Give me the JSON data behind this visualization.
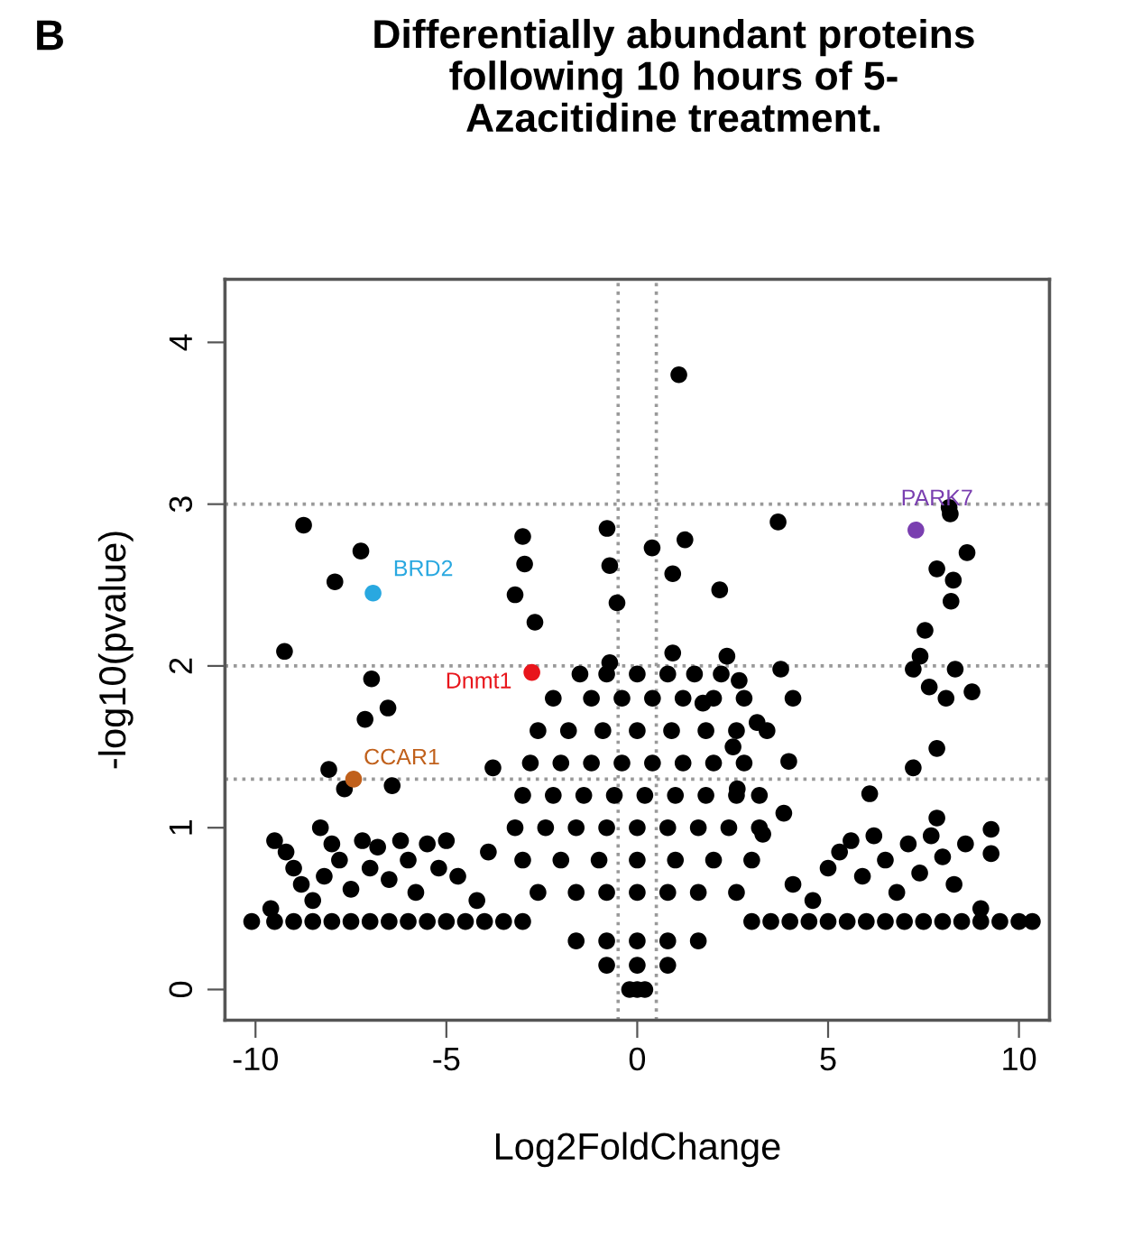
{
  "chart_data": {
    "type": "scatter",
    "title": "Differentially abundant proteins\nfollowing 10 hours of 5-\nAzacitidine treatment.",
    "xlabel": "Log2FoldChange",
    "ylabel": "-log10(pvalue)",
    "annotations": [
      "B"
    ],
    "xlim": [
      -10.8,
      10.8
    ],
    "ylim": [
      -0.19,
      4.39
    ],
    "xticks": [
      -10,
      -5,
      0,
      5,
      10
    ],
    "yticks": [
      0,
      1,
      2,
      3,
      4
    ],
    "grid": false,
    "legend": false,
    "marker": "circle",
    "ref_lines": [
      {
        "axis": "y",
        "value": 3,
        "color": "#999999",
        "line_style": "dotted"
      },
      {
        "axis": "y",
        "value": 2,
        "color": "#999999",
        "line_style": "dotted"
      },
      {
        "axis": "y",
        "value": 1.3,
        "color": "#999999",
        "line_style": "dotted"
      },
      {
        "axis": "x",
        "value": -0.5,
        "color": "#999999",
        "line_style": "dotted"
      },
      {
        "axis": "x",
        "value": 0.5,
        "color": "#999999",
        "line_style": "dotted"
      }
    ],
    "series": [
      {
        "color": "#000000",
        "x": [
          -8.74,
          -7.24,
          -7.92,
          -9.24,
          -6.96,
          -7.13,
          -6.53,
          -8.08,
          -7.67,
          -6.42,
          -3.78,
          -3.0,
          -2.95,
          -3.2,
          -2.68,
          -0.79,
          -0.72,
          -0.53,
          -0.72,
          1.09,
          3.69,
          1.25,
          0.39,
          0.93,
          2.16,
          8.17,
          8.2,
          8.64,
          7.85,
          8.28,
          8.22,
          7.54,
          7.41,
          7.23,
          8.33,
          7.65,
          8.09,
          8.77,
          7.85,
          7.23,
          6.09,
          7.85,
          9.27,
          9.27,
          3.76,
          4.08,
          3.97,
          2.62,
          3.84,
          3.29,
          4.08,
          0.93,
          2.35,
          2.67,
          1.72,
          3.14,
          2.51,
          -10.1,
          -9.5,
          -9,
          -8.5,
          -8,
          -7.5,
          -7,
          -6.5,
          -6,
          -5.5,
          -5,
          -4.5,
          -4,
          -3.5,
          -3,
          3,
          3.5,
          4,
          4.5,
          5,
          5.5,
          6,
          6.5,
          7,
          7.5,
          8,
          8.5,
          9,
          9.5,
          10,
          10.35,
          -9.5,
          -9.2,
          -9,
          -8.8,
          -8.5,
          -8.2,
          -8,
          -7.8,
          -7.5,
          -7.2,
          -7,
          -6.8,
          -6.5,
          -6.2,
          -6,
          -5.8,
          -5.5,
          -5.2,
          -5,
          -4.7,
          -4.2,
          -3.9,
          -9.6,
          -8.3,
          5.0,
          5.3,
          5.6,
          5.9,
          6.2,
          6.5,
          6.8,
          7.1,
          7.4,
          7.7,
          8.0,
          8.3,
          8.6,
          4.6,
          9.0,
          -1.5,
          -0.8,
          0,
          0.8,
          1.5,
          2.2,
          -2.2,
          -1.2,
          -0.4,
          0.4,
          1.2,
          2.0,
          2.8,
          -2.6,
          -1.8,
          -0.9,
          0,
          0.9,
          1.8,
          2.6,
          3.4,
          -2.8,
          -2,
          -1.2,
          -0.4,
          0.4,
          1.2,
          2,
          2.8,
          -3,
          -2.2,
          -1.4,
          -0.6,
          0.2,
          1,
          1.8,
          2.6,
          3.2,
          -3.2,
          -2.4,
          -1.6,
          -0.8,
          0,
          0.8,
          1.6,
          2.4,
          3.2,
          -3,
          -2,
          -1,
          0,
          1,
          2,
          3,
          -2.6,
          -1.6,
          -0.8,
          0,
          0.8,
          1.6,
          2.6,
          -1.6,
          -0.8,
          0,
          0.8,
          1.6,
          -0.8,
          0,
          0.8,
          -0.2,
          0,
          0.2
        ],
        "values": [
          2.87,
          2.71,
          2.52,
          2.09,
          1.92,
          1.67,
          1.74,
          1.36,
          1.24,
          1.26,
          1.37,
          2.8,
          2.63,
          2.44,
          2.27,
          2.85,
          2.62,
          2.39,
          2.02,
          3.8,
          2.89,
          2.78,
          2.73,
          2.57,
          2.47,
          2.98,
          2.94,
          2.7,
          2.6,
          2.53,
          2.4,
          2.22,
          2.06,
          1.98,
          1.98,
          1.87,
          1.8,
          1.84,
          1.49,
          1.37,
          1.21,
          1.06,
          0.99,
          0.84,
          1.98,
          1.8,
          1.41,
          1.24,
          1.09,
          0.96,
          0.65,
          2.08,
          2.06,
          1.91,
          1.77,
          1.65,
          1.5,
          0.42,
          0.42,
          0.42,
          0.42,
          0.42,
          0.42,
          0.42,
          0.42,
          0.42,
          0.42,
          0.42,
          0.42,
          0.42,
          0.42,
          0.42,
          0.42,
          0.42,
          0.42,
          0.42,
          0.42,
          0.42,
          0.42,
          0.42,
          0.42,
          0.42,
          0.42,
          0.42,
          0.42,
          0.42,
          0.42,
          0.42,
          0.92,
          0.85,
          0.75,
          0.65,
          0.55,
          0.7,
          0.9,
          0.8,
          0.62,
          0.92,
          0.75,
          0.88,
          0.68,
          0.92,
          0.8,
          0.6,
          0.9,
          0.75,
          0.92,
          0.7,
          0.55,
          0.85,
          0.5,
          1.0,
          0.75,
          0.85,
          0.92,
          0.7,
          0.95,
          0.8,
          0.6,
          0.9,
          0.72,
          0.95,
          0.82,
          0.65,
          0.9,
          0.55,
          0.5,
          1.95,
          1.95,
          1.95,
          1.95,
          1.95,
          1.95,
          1.8,
          1.8,
          1.8,
          1.8,
          1.8,
          1.8,
          1.8,
          1.6,
          1.6,
          1.6,
          1.6,
          1.6,
          1.6,
          1.6,
          1.6,
          1.4,
          1.4,
          1.4,
          1.4,
          1.4,
          1.4,
          1.4,
          1.4,
          1.2,
          1.2,
          1.2,
          1.2,
          1.2,
          1.2,
          1.2,
          1.2,
          1.2,
          1.0,
          1.0,
          1.0,
          1.0,
          1.0,
          1.0,
          1.0,
          1.0,
          1.0,
          0.8,
          0.8,
          0.8,
          0.8,
          0.8,
          0.8,
          0.8,
          0.6,
          0.6,
          0.6,
          0.6,
          0.6,
          0.6,
          0.6,
          0.3,
          0.3,
          0.3,
          0.3,
          0.3,
          0.15,
          0.15,
          0.15,
          0.0,
          0.0,
          0.0
        ]
      },
      {
        "name": "BRD2",
        "color": "#29a8e0",
        "x": [
          -6.92
        ],
        "values": [
          2.45
        ]
      },
      {
        "name": "Dnmt1",
        "color": "#e8151b",
        "x": [
          -2.76
        ],
        "values": [
          1.96
        ]
      },
      {
        "name": "CCAR1",
        "color": "#c0601b",
        "x": [
          -7.43
        ],
        "values": [
          1.3
        ]
      },
      {
        "name": "PARK7",
        "color": "#7a3fb0",
        "x": [
          7.3
        ],
        "values": [
          2.84
        ]
      }
    ]
  }
}
